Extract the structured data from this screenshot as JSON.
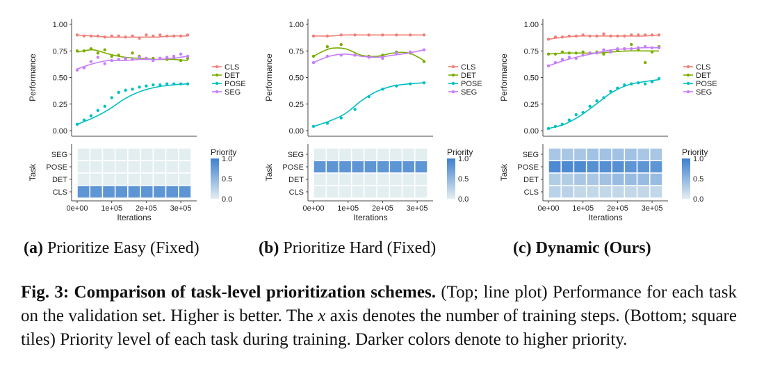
{
  "chart_data": [
    {
      "id": "a",
      "type": "line",
      "label": "(a)",
      "caption": "Prioritize Easy (Fixed)",
      "ylabel": "Performance",
      "ylim": [
        0,
        1
      ],
      "xlim": [
        0,
        330000
      ],
      "yticks": [
        "0.00",
        "0.25",
        "0.50",
        "0.75",
        "1.00"
      ],
      "ytick_values": [
        0,
        0.25,
        0.5,
        0.75,
        1.0
      ],
      "legend_position": "right",
      "series": [
        {
          "name": "CLS",
          "color": "#f07f77",
          "x": [
            0,
            20000,
            40000,
            60000,
            80000,
            100000,
            120000,
            140000,
            160000,
            180000,
            200000,
            220000,
            240000,
            260000,
            280000,
            300000,
            320000
          ],
          "y": [
            0.9,
            0.89,
            0.89,
            0.89,
            0.88,
            0.89,
            0.89,
            0.88,
            0.89,
            0.87,
            0.9,
            0.89,
            0.9,
            0.89,
            0.89,
            0.89,
            0.9
          ],
          "fit": [
            0.9,
            0.89,
            0.88,
            0.88,
            0.88,
            0.88,
            0.89,
            0.89
          ]
        },
        {
          "name": "DET",
          "color": "#7cad00",
          "x": [
            0,
            20000,
            40000,
            60000,
            80000,
            100000,
            120000,
            140000,
            160000,
            180000,
            200000,
            220000,
            240000,
            260000,
            280000,
            300000,
            320000
          ],
          "y": [
            0.75,
            0.75,
            0.77,
            0.73,
            0.76,
            0.7,
            0.71,
            0.67,
            0.73,
            0.7,
            0.68,
            0.68,
            0.68,
            0.67,
            0.68,
            0.66,
            0.68
          ],
          "fit": [
            0.74,
            0.76,
            0.72,
            0.69,
            0.68,
            0.67,
            0.67,
            0.66
          ]
        },
        {
          "name": "POSE",
          "color": "#00bfc4",
          "x": [
            0,
            20000,
            40000,
            60000,
            80000,
            100000,
            120000,
            140000,
            160000,
            180000,
            200000,
            220000,
            240000,
            260000,
            280000,
            300000,
            320000
          ],
          "y": [
            0.06,
            0.1,
            0.14,
            0.19,
            0.23,
            0.31,
            0.36,
            0.38,
            0.39,
            0.41,
            0.42,
            0.43,
            0.43,
            0.44,
            0.44,
            0.44,
            0.44
          ],
          "fit": [
            0.06,
            0.12,
            0.2,
            0.3,
            0.37,
            0.41,
            0.43,
            0.44
          ]
        },
        {
          "name": "SEG",
          "color": "#c77cff",
          "x": [
            0,
            20000,
            40000,
            60000,
            80000,
            100000,
            120000,
            140000,
            160000,
            180000,
            200000,
            220000,
            240000,
            260000,
            280000,
            300000,
            320000
          ],
          "y": [
            0.57,
            0.59,
            0.65,
            0.69,
            0.63,
            0.66,
            0.67,
            0.68,
            0.67,
            0.69,
            0.68,
            0.66,
            0.68,
            0.69,
            0.7,
            0.72,
            0.7
          ],
          "fit": [
            0.58,
            0.63,
            0.66,
            0.66,
            0.67,
            0.67,
            0.68,
            0.7
          ]
        }
      ],
      "fit_x": [
        0,
        46000,
        92000,
        138000,
        184000,
        230000,
        276000,
        320000
      ],
      "heatmap": {
        "tasks": [
          "SEG",
          "POSE",
          "DET",
          "CLS"
        ],
        "ylabel": "Task",
        "xlabel": "Iterations",
        "xticks": [
          "0e+00",
          "1e+05",
          "2e+05",
          "3e+05"
        ],
        "xtick_values": [
          0,
          100000,
          200000,
          300000
        ],
        "columns": 9,
        "values": [
          [
            0,
            0,
            0,
            0,
            0,
            0,
            0,
            0,
            0
          ],
          [
            0,
            0,
            0,
            0,
            0,
            0,
            0,
            0,
            0
          ],
          [
            0,
            0,
            0,
            0,
            0,
            0,
            0,
            0,
            0
          ],
          [
            0.8,
            0.8,
            0.8,
            0.8,
            0.8,
            0.8,
            0.8,
            0.8,
            0.8
          ]
        ]
      },
      "priority_legend": {
        "title": "Priority",
        "ticks": [
          "1.0",
          "0.5",
          "0.0"
        ]
      }
    },
    {
      "id": "b",
      "type": "line",
      "label": "(b)",
      "caption": "Prioritize Hard (Fixed)",
      "ylabel": "Performance",
      "ylim": [
        0,
        1
      ],
      "xlim": [
        0,
        330000
      ],
      "yticks": [
        "0.00",
        "0.25",
        "0.50",
        "0.75",
        "1.00"
      ],
      "ytick_values": [
        0,
        0.25,
        0.5,
        0.75,
        1.0
      ],
      "legend_position": "right",
      "series": [
        {
          "name": "CLS",
          "color": "#f07f77",
          "x": [
            0,
            40000,
            80000,
            120000,
            160000,
            200000,
            240000,
            280000,
            320000
          ],
          "y": [
            0.89,
            0.89,
            0.9,
            0.9,
            0.9,
            0.9,
            0.9,
            0.9,
            0.9
          ],
          "fit": [
            0.89,
            0.89,
            0.9,
            0.9,
            0.9,
            0.9,
            0.9,
            0.9
          ]
        },
        {
          "name": "DET",
          "color": "#7cad00",
          "x": [
            0,
            40000,
            80000,
            120000,
            160000,
            200000,
            240000,
            280000,
            320000
          ],
          "y": [
            0.7,
            0.79,
            0.81,
            0.71,
            0.7,
            0.71,
            0.74,
            0.73,
            0.65
          ],
          "fit": [
            0.7,
            0.77,
            0.77,
            0.71,
            0.7,
            0.73,
            0.73,
            0.66
          ]
        },
        {
          "name": "POSE",
          "color": "#00bfc4",
          "x": [
            0,
            40000,
            80000,
            120000,
            160000,
            200000,
            240000,
            280000,
            320000
          ],
          "y": [
            0.04,
            0.07,
            0.12,
            0.2,
            0.32,
            0.39,
            0.42,
            0.44,
            0.45
          ],
          "fit": [
            0.04,
            0.09,
            0.16,
            0.28,
            0.37,
            0.42,
            0.44,
            0.45
          ]
        },
        {
          "name": "SEG",
          "color": "#c77cff",
          "x": [
            0,
            40000,
            80000,
            120000,
            160000,
            200000,
            240000,
            280000,
            320000
          ],
          "y": [
            0.64,
            0.7,
            0.71,
            0.71,
            0.69,
            0.68,
            0.73,
            0.74,
            0.76
          ],
          "fit": [
            0.64,
            0.7,
            0.72,
            0.7,
            0.69,
            0.71,
            0.73,
            0.76
          ]
        }
      ],
      "fit_x": [
        0,
        46000,
        92000,
        138000,
        184000,
        230000,
        276000,
        320000
      ],
      "heatmap": {
        "tasks": [
          "SEG",
          "POSE",
          "DET",
          "CLS"
        ],
        "ylabel": "Task",
        "xlabel": "Iterations",
        "xticks": [
          "0e+00",
          "1e+05",
          "2e+05",
          "3e+05"
        ],
        "xtick_values": [
          0,
          100000,
          200000,
          300000
        ],
        "columns": 9,
        "values": [
          [
            0,
            0,
            0,
            0,
            0,
            0,
            0,
            0,
            0
          ],
          [
            0.8,
            0.8,
            0.8,
            0.8,
            0.8,
            0.8,
            0.8,
            0.8,
            0.8
          ],
          [
            0,
            0,
            0,
            0,
            0,
            0,
            0,
            0,
            0
          ],
          [
            0,
            0,
            0,
            0,
            0,
            0,
            0,
            0,
            0
          ]
        ]
      },
      "priority_legend": {
        "title": "Priority",
        "ticks": [
          "1.0",
          "0.5",
          "0.0"
        ]
      }
    },
    {
      "id": "c",
      "type": "line",
      "label": "(c)",
      "caption": "Dynamic (Ours)",
      "ylabel": "Performance",
      "ylim": [
        0,
        1
      ],
      "xlim": [
        0,
        330000
      ],
      "yticks": [
        "0.00",
        "0.25",
        "0.50",
        "0.75",
        "1.00"
      ],
      "ytick_values": [
        0,
        0.25,
        0.5,
        0.75,
        1.0
      ],
      "legend_position": "right",
      "series": [
        {
          "name": "CLS",
          "color": "#f07f77",
          "x": [
            0,
            20000,
            40000,
            60000,
            80000,
            100000,
            120000,
            140000,
            160000,
            180000,
            200000,
            220000,
            240000,
            260000,
            280000,
            300000,
            320000
          ],
          "y": [
            0.86,
            0.88,
            0.88,
            0.89,
            0.89,
            0.9,
            0.89,
            0.89,
            0.91,
            0.89,
            0.89,
            0.89,
            0.9,
            0.9,
            0.9,
            0.9,
            0.9
          ],
          "fit": [
            0.86,
            0.88,
            0.89,
            0.89,
            0.89,
            0.89,
            0.89,
            0.9
          ]
        },
        {
          "name": "DET",
          "color": "#7cad00",
          "x": [
            0,
            20000,
            40000,
            60000,
            80000,
            100000,
            120000,
            140000,
            160000,
            180000,
            200000,
            220000,
            240000,
            260000,
            280000,
            300000,
            320000
          ],
          "y": [
            0.72,
            0.72,
            0.74,
            0.73,
            0.73,
            0.74,
            0.73,
            0.74,
            0.72,
            0.75,
            0.76,
            0.77,
            0.81,
            0.76,
            0.64,
            0.74,
            0.79
          ],
          "fit": [
            0.72,
            0.73,
            0.73,
            0.73,
            0.74,
            0.75,
            0.75,
            0.75
          ]
        },
        {
          "name": "POSE",
          "color": "#00bfc4",
          "x": [
            0,
            20000,
            40000,
            60000,
            80000,
            100000,
            120000,
            140000,
            160000,
            180000,
            200000,
            220000,
            240000,
            260000,
            280000,
            300000,
            320000
          ],
          "y": [
            0.02,
            0.04,
            0.06,
            0.1,
            0.15,
            0.17,
            0.23,
            0.28,
            0.31,
            0.37,
            0.4,
            0.43,
            0.44,
            0.45,
            0.44,
            0.46,
            0.49
          ],
          "fit": [
            0.02,
            0.06,
            0.14,
            0.25,
            0.36,
            0.43,
            0.46,
            0.48
          ]
        },
        {
          "name": "SEG",
          "color": "#c77cff",
          "x": [
            0,
            20000,
            40000,
            60000,
            80000,
            100000,
            120000,
            140000,
            160000,
            180000,
            200000,
            220000,
            240000,
            260000,
            280000,
            300000,
            320000
          ],
          "y": [
            0.61,
            0.64,
            0.67,
            0.69,
            0.68,
            0.71,
            0.73,
            0.73,
            0.76,
            0.74,
            0.77,
            0.77,
            0.77,
            0.78,
            0.79,
            0.78,
            0.78
          ],
          "fit": [
            0.61,
            0.66,
            0.7,
            0.73,
            0.76,
            0.77,
            0.78,
            0.78
          ]
        }
      ],
      "fit_x": [
        0,
        46000,
        92000,
        138000,
        184000,
        230000,
        276000,
        320000
      ],
      "heatmap": {
        "tasks": [
          "SEG",
          "POSE",
          "DET",
          "CLS"
        ],
        "ylabel": "Task",
        "xlabel": "Iterations",
        "xticks": [
          "0e+00",
          "1e+05",
          "2e+05",
          "3e+05"
        ],
        "xtick_values": [
          0,
          100000,
          200000,
          300000
        ],
        "columns": 9,
        "values": [
          [
            0.35,
            0.35,
            0.35,
            0.4,
            0.4,
            0.4,
            0.4,
            0.35,
            0.35
          ],
          [
            0.9,
            0.9,
            0.9,
            0.85,
            0.85,
            0.85,
            0.8,
            0.8,
            0.8
          ],
          [
            0.3,
            0.3,
            0.35,
            0.35,
            0.4,
            0.45,
            0.45,
            0.45,
            0.45
          ],
          [
            0.25,
            0.25,
            0.2,
            0.2,
            0.2,
            0.2,
            0.2,
            0.2,
            0.2
          ]
        ]
      },
      "priority_legend": {
        "title": "Priority",
        "ticks": [
          "1.0",
          "0.5",
          "0.0"
        ]
      }
    }
  ],
  "caption": {
    "fig_label": "Fig. 3:",
    "bold_text": "Comparison of task-level prioritization schemes.",
    "text_part1": "(Top; line plot) Performance for each task on the validation set. Higher is better. The ",
    "x_var": "x",
    "text_part2": " axis denotes the number of training steps. (Bottom; square tiles) Priority level of each task during training. Darker colors denote to higher priority."
  }
}
